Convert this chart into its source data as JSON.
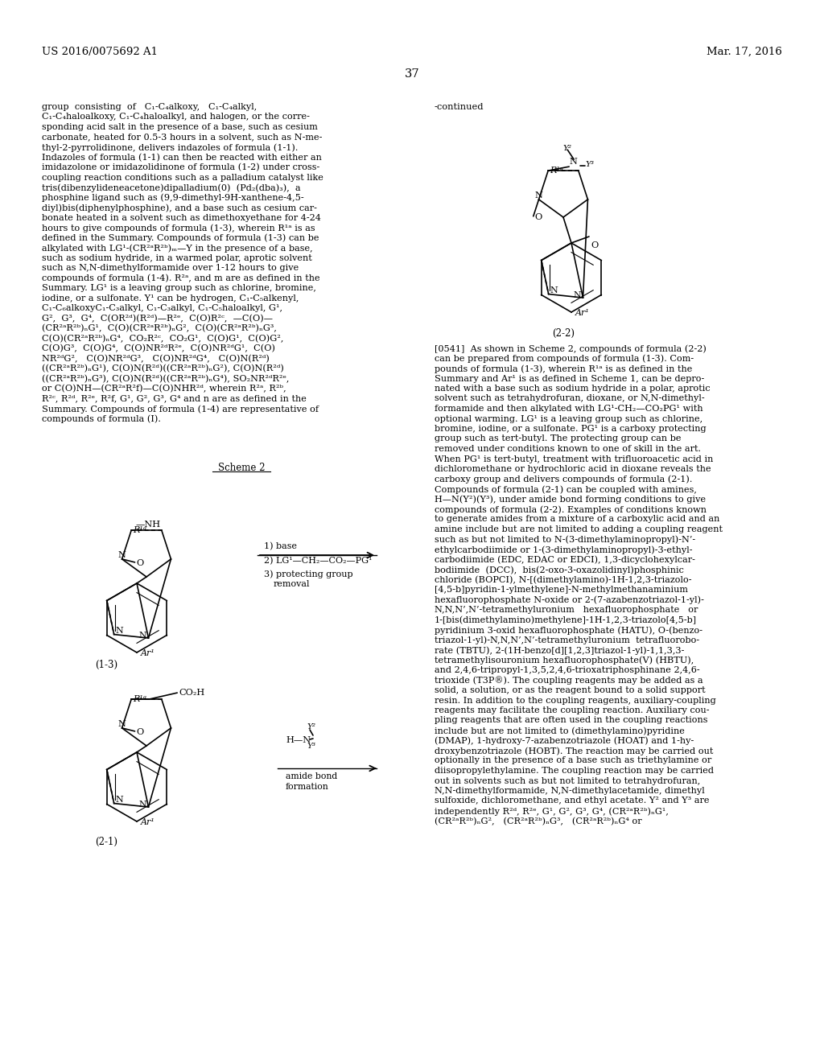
{
  "header_left": "US 2016/0075692 A1",
  "header_right": "Mar. 17, 2016",
  "page_number": "37",
  "bg_color": "#ffffff",
  "text_color": "#000000"
}
